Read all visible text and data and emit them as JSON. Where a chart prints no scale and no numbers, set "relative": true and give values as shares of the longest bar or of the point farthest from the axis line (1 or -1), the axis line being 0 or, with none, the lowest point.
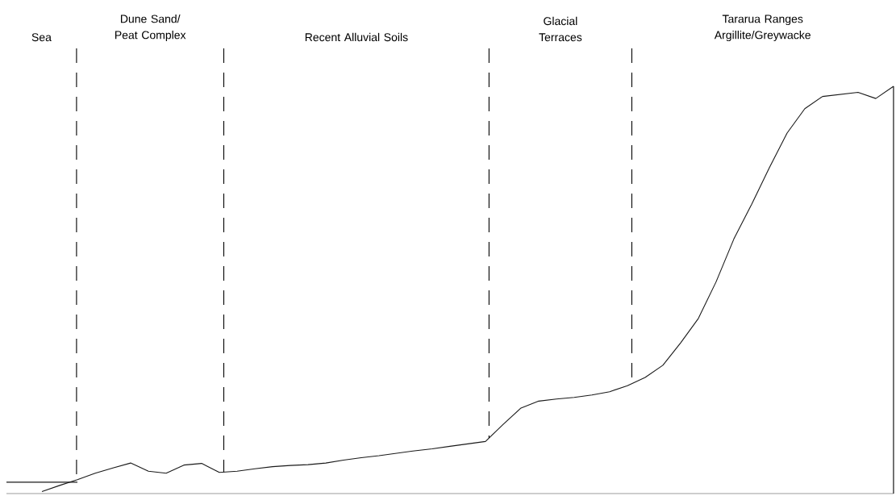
{
  "chart_data": {
    "type": "line",
    "relative": true,
    "marker": "none",
    "line_style": "solid",
    "categories": [
      null,
      null,
      null,
      null,
      null,
      null,
      null,
      null,
      null,
      null,
      null,
      null,
      null,
      null,
      null,
      null,
      null,
      null,
      null,
      null,
      null,
      null,
      null,
      null,
      null,
      null,
      null,
      null,
      null,
      null,
      null,
      null,
      null,
      null,
      null,
      null,
      null,
      null,
      null,
      null,
      null,
      null,
      null,
      null,
      null,
      null,
      null,
      null,
      null,
      null,
      null
    ],
    "series": [
      {
        "color": "#1a1a1a",
        "values": [
          null,
          null,
          0.005,
          0.02,
          0.034,
          0.05,
          0.063,
          0.075,
          0.055,
          0.05,
          0.07,
          0.074,
          0.052,
          0.055,
          0.061,
          0.066,
          0.069,
          0.071,
          0.075,
          0.082,
          0.088,
          0.093,
          0.099,
          0.105,
          0.11,
          0.116,
          0.122,
          0.128,
          0.17,
          0.21,
          0.227,
          0.232,
          0.236,
          0.242,
          0.25,
          0.265,
          0.285,
          0.315,
          0.37,
          0.43,
          0.52,
          0.625,
          0.71,
          0.8,
          0.885,
          0.945,
          0.975,
          0.98,
          0.985,
          0.97,
          1.0
        ]
      },
      {
        "color": "#1a1a1a",
        "values": [
          0.028,
          0.028,
          0.028,
          0.028,
          0.028,
          null,
          null,
          null,
          null,
          null,
          null,
          null,
          null,
          null,
          null,
          null,
          null,
          null,
          null,
          null,
          null,
          null,
          null,
          null,
          null,
          null,
          null,
          null,
          null,
          null,
          null,
          null,
          null,
          null,
          null,
          null,
          null,
          null,
          null,
          null,
          null,
          null,
          null,
          null,
          null,
          null,
          null,
          null,
          null,
          null,
          null
        ]
      }
    ],
    "annotations": [
      "Sea",
      "Dune Sand/ Peat Complex",
      "Recent Alluvial Soils",
      "Glacial Terraces",
      "Tararua Ranges Argillite/Greywacke"
    ]
  }
}
